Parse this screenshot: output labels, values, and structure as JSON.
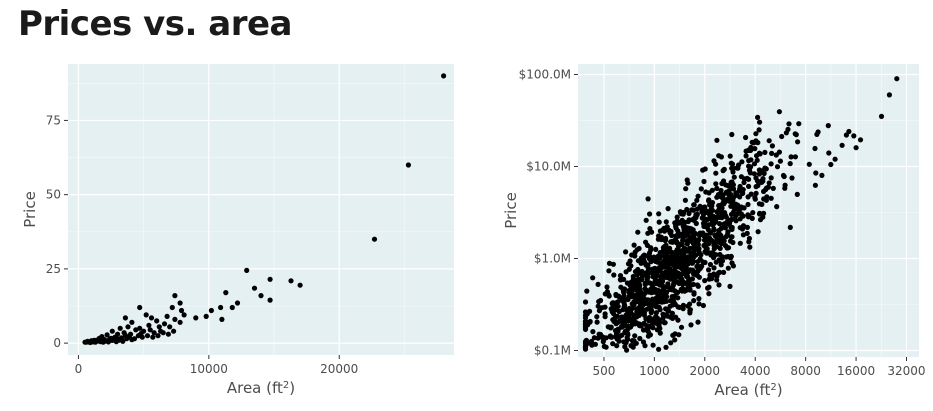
{
  "title": "Prices vs. area",
  "chart_data": [
    {
      "type": "scatter",
      "xlabel": "Area (ft",
      "xlabel_sup": "2",
      "xlabel_end": ")",
      "ylabel": "Price",
      "xscale": "linear",
      "yscale": "linear",
      "xlim": [
        -800,
        28800
      ],
      "ylim": [
        -4,
        94
      ],
      "xticks": [
        0,
        10000,
        20000
      ],
      "xtick_labels": [
        "0",
        "10000",
        "20000"
      ],
      "yticks": [
        0,
        25,
        50,
        75
      ],
      "ytick_labels": [
        "0",
        "25",
        "50",
        "75"
      ],
      "grid": true,
      "points": [
        [
          28000,
          90
        ],
        [
          25300,
          60
        ],
        [
          22700,
          35
        ],
        [
          12900,
          24.5
        ],
        [
          14700,
          21.5
        ],
        [
          16300,
          21
        ],
        [
          17000,
          19.5
        ],
        [
          13500,
          18.5
        ],
        [
          14000,
          16
        ],
        [
          14700,
          14.5
        ],
        [
          11300,
          17
        ],
        [
          12200,
          13.5
        ],
        [
          11800,
          12
        ],
        [
          10900,
          12
        ],
        [
          10200,
          11
        ],
        [
          9800,
          9
        ],
        [
          11000,
          8
        ],
        [
          9000,
          8.5
        ],
        [
          7400,
          16
        ],
        [
          7800,
          13.5
        ],
        [
          7200,
          12
        ],
        [
          7900,
          11
        ],
        [
          8100,
          9.5
        ],
        [
          6800,
          9
        ],
        [
          7400,
          8
        ],
        [
          7800,
          7
        ],
        [
          6600,
          6.5
        ],
        [
          7000,
          5.5
        ],
        [
          4700,
          12
        ],
        [
          5200,
          9.5
        ],
        [
          5600,
          8.5
        ],
        [
          6000,
          7.5
        ],
        [
          5400,
          6
        ],
        [
          6200,
          5.5
        ],
        [
          4700,
          5
        ],
        [
          5000,
          4
        ],
        [
          5800,
          3.5
        ],
        [
          6500,
          3.5
        ],
        [
          3600,
          8.5
        ],
        [
          4100,
          7
        ],
        [
          3800,
          5.5
        ],
        [
          4400,
          4.5
        ],
        [
          3200,
          5
        ],
        [
          3500,
          3.5
        ],
        [
          4000,
          3
        ],
        [
          4600,
          2.5
        ],
        [
          3000,
          3
        ],
        [
          2600,
          4
        ],
        [
          2800,
          2
        ],
        [
          3300,
          1.8
        ],
        [
          3700,
          1.5
        ],
        [
          4300,
          1.5
        ],
        [
          2200,
          2.8
        ],
        [
          1800,
          2.2
        ],
        [
          2000,
          1.2
        ],
        [
          2400,
          1.4
        ],
        [
          1600,
          1.6
        ],
        [
          1400,
          1
        ],
        [
          1200,
          0.6
        ],
        [
          1000,
          0.8
        ],
        [
          800,
          0.4
        ],
        [
          1700,
          0.5
        ],
        [
          2100,
          0.7
        ],
        [
          2600,
          0.9
        ],
        [
          3100,
          1
        ],
        [
          1300,
          0.3
        ],
        [
          900,
          0.2
        ],
        [
          600,
          0.3
        ],
        [
          1900,
          0.3
        ],
        [
          2300,
          0.4
        ],
        [
          2900,
          0.5
        ],
        [
          3400,
          0.6
        ],
        [
          1100,
          0.4
        ],
        [
          1500,
          0.7
        ],
        [
          700,
          0.6
        ],
        [
          500,
          0.3
        ],
        [
          4900,
          2
        ],
        [
          5300,
          2.5
        ],
        [
          5700,
          2
        ],
        [
          6100,
          2.5
        ],
        [
          6900,
          3
        ],
        [
          7300,
          4
        ],
        [
          4100,
          1.2
        ],
        [
          3900,
          2.2
        ],
        [
          2500,
          1.6
        ],
        [
          3600,
          2.6
        ],
        [
          4800,
          3.2
        ],
        [
          3000,
          1.4
        ],
        [
          2000,
          0.9
        ],
        [
          1700,
          1.1
        ],
        [
          1200,
          0.9
        ],
        [
          5500,
          4.5
        ],
        [
          6300,
          4
        ]
      ]
    },
    {
      "type": "scatter",
      "xlabel": "Area (ft",
      "xlabel_sup": "2",
      "xlabel_end": ")",
      "ylabel": "Price",
      "xscale": "log2",
      "yscale": "log10",
      "xlim": [
        350,
        38000
      ],
      "ylim": [
        0.085,
        130
      ],
      "xticks": [
        500,
        1000,
        2000,
        4000,
        8000,
        16000,
        32000
      ],
      "xtick_labels": [
        "500",
        "1000",
        "2000",
        "4000",
        "8000",
        "16000",
        "32000"
      ],
      "yticks": [
        0.1,
        1,
        10,
        100
      ],
      "ytick_labels": [
        "$0.1M",
        "$1.0M",
        "$10.0M",
        "$100.0M"
      ],
      "grid": true,
      "trend": {
        "a": -5.84,
        "b": 1.836,
        "spread": 0.32
      },
      "points": [
        [
          28000,
          90
        ],
        [
          25300,
          60
        ],
        [
          22700,
          35
        ],
        [
          14500,
          24
        ],
        [
          15500,
          21.5
        ],
        [
          17000,
          19.5
        ],
        [
          16000,
          16
        ],
        [
          14000,
          22
        ],
        [
          13200,
          17
        ],
        [
          12000,
          12
        ],
        [
          11300,
          10.5
        ],
        [
          11000,
          14
        ],
        [
          10000,
          8
        ],
        [
          9200,
          8.5
        ]
      ]
    }
  ]
}
